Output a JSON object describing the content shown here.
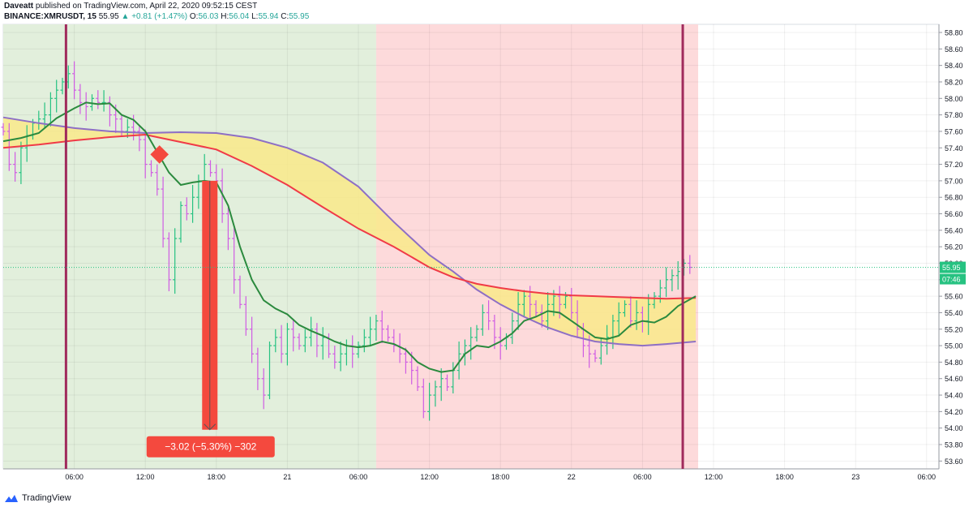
{
  "header": {
    "author": "Daveatt",
    "published_text": "published on TradingView.com, April 22, 2020 09:52:15 CEST",
    "symbol": "BINANCE:XMRUSDT, 15",
    "last": "55.95",
    "change": "+0.81 (+1.47%)",
    "o_label": "O:",
    "o": "56.03",
    "h_label": "H:",
    "h": "56.04",
    "l_label": "L:",
    "l": "55.94",
    "c_label": "C:",
    "c": "55.95"
  },
  "footer": {
    "brand": "TradingView"
  },
  "colors": {
    "bull_bg": "#e2efdc",
    "bear_bg": "#fddadb",
    "up": "#26c281",
    "down": "#d05ce3",
    "ema_red": "#f03a47",
    "sma_purple": "#8e6fc5",
    "fast_green": "#2b8a3e",
    "ribbon_fill": "#f9e98a",
    "marker": "#a02a5c",
    "measure": "#f4493e"
  },
  "chart_data": {
    "type": "line",
    "title": "BINANCE:XMRUSDT, 15",
    "ylim": [
      53.5,
      58.96
    ],
    "yticks": [
      "58.80",
      "58.60",
      "58.40",
      "58.20",
      "58.00",
      "57.80",
      "57.60",
      "57.40",
      "57.20",
      "57.00",
      "56.80",
      "56.60",
      "56.40",
      "56.20",
      "56.00",
      "55.80",
      "55.60",
      "55.40",
      "55.20",
      "55.00",
      "54.80",
      "54.60",
      "54.40",
      "54.20",
      "54.00",
      "53.80",
      "53.60"
    ],
    "xticks": [
      {
        "label": "06:00",
        "h": 6
      },
      {
        "label": "12:00",
        "h": 12
      },
      {
        "label": "18:00",
        "h": 18
      },
      {
        "label": "21",
        "h": 24
      },
      {
        "label": "06:00",
        "h": 30
      },
      {
        "label": "12:00",
        "h": 36
      },
      {
        "label": "18:00",
        "h": 42
      },
      {
        "label": "22",
        "h": 48
      },
      {
        "label": "06:00",
        "h": 54
      },
      {
        "label": "12:00",
        "h": 60
      },
      {
        "label": "18:00",
        "h": 66
      },
      {
        "label": "23",
        "h": 72
      },
      {
        "label": "06:00",
        "h": 78
      }
    ],
    "last_price": {
      "value": 55.95,
      "label": "55.95",
      "countdown": "07:46"
    },
    "regions": [
      {
        "from_h": 0,
        "to_h": 31.5,
        "kind": "bull"
      },
      {
        "from_h": 31.5,
        "to_h": 58.7,
        "kind": "bear"
      }
    ],
    "vlines_h": [
      5.3,
      57.4
    ],
    "series": [
      {
        "key": "sma_purple",
        "points": [
          [
            0,
            57.77
          ],
          [
            3,
            57.7
          ],
          [
            6,
            57.64
          ],
          [
            9,
            57.6
          ],
          [
            12,
            57.58
          ],
          [
            15,
            57.59
          ],
          [
            18,
            57.58
          ],
          [
            21,
            57.52
          ],
          [
            24,
            57.4
          ],
          [
            27,
            57.22
          ],
          [
            30,
            56.93
          ],
          [
            33,
            56.5
          ],
          [
            36,
            56.1
          ],
          [
            38,
            55.9
          ],
          [
            40,
            55.68
          ],
          [
            42,
            55.5
          ],
          [
            44,
            55.35
          ],
          [
            46,
            55.22
          ],
          [
            48,
            55.12
          ],
          [
            50,
            55.05
          ],
          [
            52,
            55.02
          ],
          [
            54,
            55.0
          ],
          [
            56,
            55.02
          ],
          [
            58.5,
            55.05
          ]
        ]
      },
      {
        "key": "ema_red",
        "points": [
          [
            0,
            57.4
          ],
          [
            3,
            57.44
          ],
          [
            6,
            57.49
          ],
          [
            9,
            57.53
          ],
          [
            12,
            57.56
          ],
          [
            15,
            57.47
          ],
          [
            18,
            57.38
          ],
          [
            21,
            57.18
          ],
          [
            24,
            56.95
          ],
          [
            27,
            56.68
          ],
          [
            30,
            56.42
          ],
          [
            33,
            56.2
          ],
          [
            36,
            55.95
          ],
          [
            38,
            55.83
          ],
          [
            40,
            55.75
          ],
          [
            42,
            55.7
          ],
          [
            44,
            55.66
          ],
          [
            46,
            55.63
          ],
          [
            48,
            55.61
          ],
          [
            50,
            55.6
          ],
          [
            52,
            55.59
          ],
          [
            54,
            55.58
          ],
          [
            56,
            55.57
          ],
          [
            58.5,
            55.58
          ]
        ]
      },
      {
        "key": "fast_green",
        "points": [
          [
            0,
            57.48
          ],
          [
            1.5,
            57.52
          ],
          [
            3,
            57.58
          ],
          [
            4.5,
            57.76
          ],
          [
            6,
            57.88
          ],
          [
            7,
            57.95
          ],
          [
            8,
            57.93
          ],
          [
            9,
            57.94
          ],
          [
            10,
            57.8
          ],
          [
            11,
            57.74
          ],
          [
            12,
            57.6
          ],
          [
            13,
            57.35
          ],
          [
            14,
            57.1
          ],
          [
            15,
            56.95
          ],
          [
            16,
            56.98
          ],
          [
            17,
            57.0
          ],
          [
            18,
            56.98
          ],
          [
            19,
            56.7
          ],
          [
            20,
            56.2
          ],
          [
            21,
            55.8
          ],
          [
            22,
            55.55
          ],
          [
            23,
            55.45
          ],
          [
            24,
            55.38
          ],
          [
            25,
            55.25
          ],
          [
            26,
            55.18
          ],
          [
            27,
            55.12
          ],
          [
            28,
            55.05
          ],
          [
            29,
            55.0
          ],
          [
            30,
            54.98
          ],
          [
            31,
            55.0
          ],
          [
            32,
            55.05
          ],
          [
            33,
            55.02
          ],
          [
            34,
            54.95
          ],
          [
            35,
            54.8
          ],
          [
            36,
            54.72
          ],
          [
            37,
            54.68
          ],
          [
            38,
            54.7
          ],
          [
            39,
            54.9
          ],
          [
            40,
            55.0
          ],
          [
            41,
            54.98
          ],
          [
            42,
            55.05
          ],
          [
            43,
            55.15
          ],
          [
            44,
            55.3
          ],
          [
            45,
            55.35
          ],
          [
            46,
            55.42
          ],
          [
            47,
            55.4
          ],
          [
            48,
            55.3
          ],
          [
            49,
            55.2
          ],
          [
            50,
            55.1
          ],
          [
            51,
            55.08
          ],
          [
            52,
            55.12
          ],
          [
            53,
            55.25
          ],
          [
            54,
            55.3
          ],
          [
            55,
            55.28
          ],
          [
            56,
            55.35
          ],
          [
            57,
            55.48
          ],
          [
            58.5,
            55.6
          ]
        ]
      },
      {
        "key": "price",
        "points": [
          [
            0,
            57.6
          ],
          [
            0.5,
            57.2
          ],
          [
            1,
            57.1
          ],
          [
            1.5,
            57.4
          ],
          [
            2,
            57.55
          ],
          [
            2.5,
            57.7
          ],
          [
            3,
            57.75
          ],
          [
            3.5,
            57.8
          ],
          [
            4,
            58.0
          ],
          [
            4.5,
            58.1
          ],
          [
            5,
            58.2
          ],
          [
            5.5,
            58.3
          ],
          [
            6,
            58.1
          ],
          [
            6.5,
            57.95
          ],
          [
            7,
            57.9
          ],
          [
            7.5,
            58.0
          ],
          [
            8,
            57.95
          ],
          [
            8.5,
            57.95
          ],
          [
            9,
            57.8
          ],
          [
            9.5,
            57.75
          ],
          [
            10,
            57.6
          ],
          [
            10.5,
            57.65
          ],
          [
            11,
            57.6
          ],
          [
            11.5,
            57.5
          ],
          [
            12,
            57.2
          ],
          [
            12.5,
            57.1
          ],
          [
            13,
            56.9
          ],
          [
            13.5,
            56.3
          ],
          [
            14,
            55.8
          ],
          [
            14.5,
            56.3
          ],
          [
            15,
            56.7
          ],
          [
            15.5,
            56.6
          ],
          [
            16,
            56.8
          ],
          [
            16.5,
            57.0
          ],
          [
            17,
            57.2
          ],
          [
            17.5,
            57.1
          ],
          [
            18,
            57.0
          ],
          [
            18.5,
            56.6
          ],
          [
            19,
            56.3
          ],
          [
            19.5,
            55.8
          ],
          [
            20,
            55.5
          ],
          [
            20.5,
            55.2
          ],
          [
            21,
            54.9
          ],
          [
            21.5,
            54.6
          ],
          [
            22,
            54.4
          ],
          [
            22.5,
            55.0
          ],
          [
            23,
            55.1
          ],
          [
            23.5,
            54.9
          ],
          [
            24,
            55.2
          ],
          [
            24.5,
            55.1
          ],
          [
            25,
            55.0
          ],
          [
            25.5,
            55.1
          ],
          [
            26,
            55.2
          ],
          [
            26.5,
            55.0
          ],
          [
            27,
            55.1
          ],
          [
            27.5,
            54.9
          ],
          [
            28,
            54.8
          ],
          [
            28.5,
            54.9
          ],
          [
            29,
            55.0
          ],
          [
            29.5,
            54.9
          ],
          [
            30,
            55.0
          ],
          [
            30.5,
            55.1
          ],
          [
            31,
            55.2
          ],
          [
            31.5,
            55.3
          ],
          [
            32,
            55.2
          ],
          [
            32.5,
            55.1
          ],
          [
            33,
            55.0
          ],
          [
            33.5,
            54.9
          ],
          [
            34,
            54.8
          ],
          [
            34.5,
            54.7
          ],
          [
            35,
            54.5
          ],
          [
            35.5,
            54.2
          ],
          [
            36,
            54.4
          ],
          [
            36.5,
            54.5
          ],
          [
            37,
            54.6
          ],
          [
            37.5,
            54.5
          ],
          [
            38,
            54.7
          ],
          [
            38.5,
            54.9
          ],
          [
            39,
            55.0
          ],
          [
            39.5,
            55.1
          ],
          [
            40,
            55.2
          ],
          [
            40.5,
            55.4
          ],
          [
            41,
            55.3
          ],
          [
            41.5,
            55.1
          ],
          [
            42,
            55.0
          ],
          [
            42.5,
            55.1
          ],
          [
            43,
            55.3
          ],
          [
            43.5,
            55.5
          ],
          [
            44,
            55.6
          ],
          [
            44.5,
            55.5
          ],
          [
            45,
            55.4
          ],
          [
            45.5,
            55.3
          ],
          [
            46,
            55.5
          ],
          [
            46.5,
            55.6
          ],
          [
            47,
            55.5
          ],
          [
            47.5,
            55.6
          ],
          [
            48,
            55.4
          ],
          [
            48.5,
            55.2
          ],
          [
            49,
            55.0
          ],
          [
            49.5,
            54.9
          ],
          [
            50,
            54.85
          ],
          [
            50.5,
            55.0
          ],
          [
            51,
            55.1
          ],
          [
            51.5,
            55.3
          ],
          [
            52,
            55.4
          ],
          [
            52.5,
            55.5
          ],
          [
            53,
            55.3
          ],
          [
            53.5,
            55.4
          ],
          [
            54,
            55.3
          ],
          [
            54.5,
            55.5
          ],
          [
            55,
            55.6
          ],
          [
            55.5,
            55.7
          ],
          [
            56,
            55.8
          ],
          [
            56.5,
            55.85
          ],
          [
            57,
            55.9
          ],
          [
            57.5,
            56.0
          ],
          [
            58,
            55.95
          ]
        ]
      }
    ],
    "measure": {
      "from_h": 16.8,
      "to_h": 18.1,
      "top": 57.0,
      "bottom": 53.98,
      "label": "−3.02 (−5.30%) −302"
    },
    "sell_marker": {
      "h": 13.2,
      "value": 57.32
    }
  }
}
